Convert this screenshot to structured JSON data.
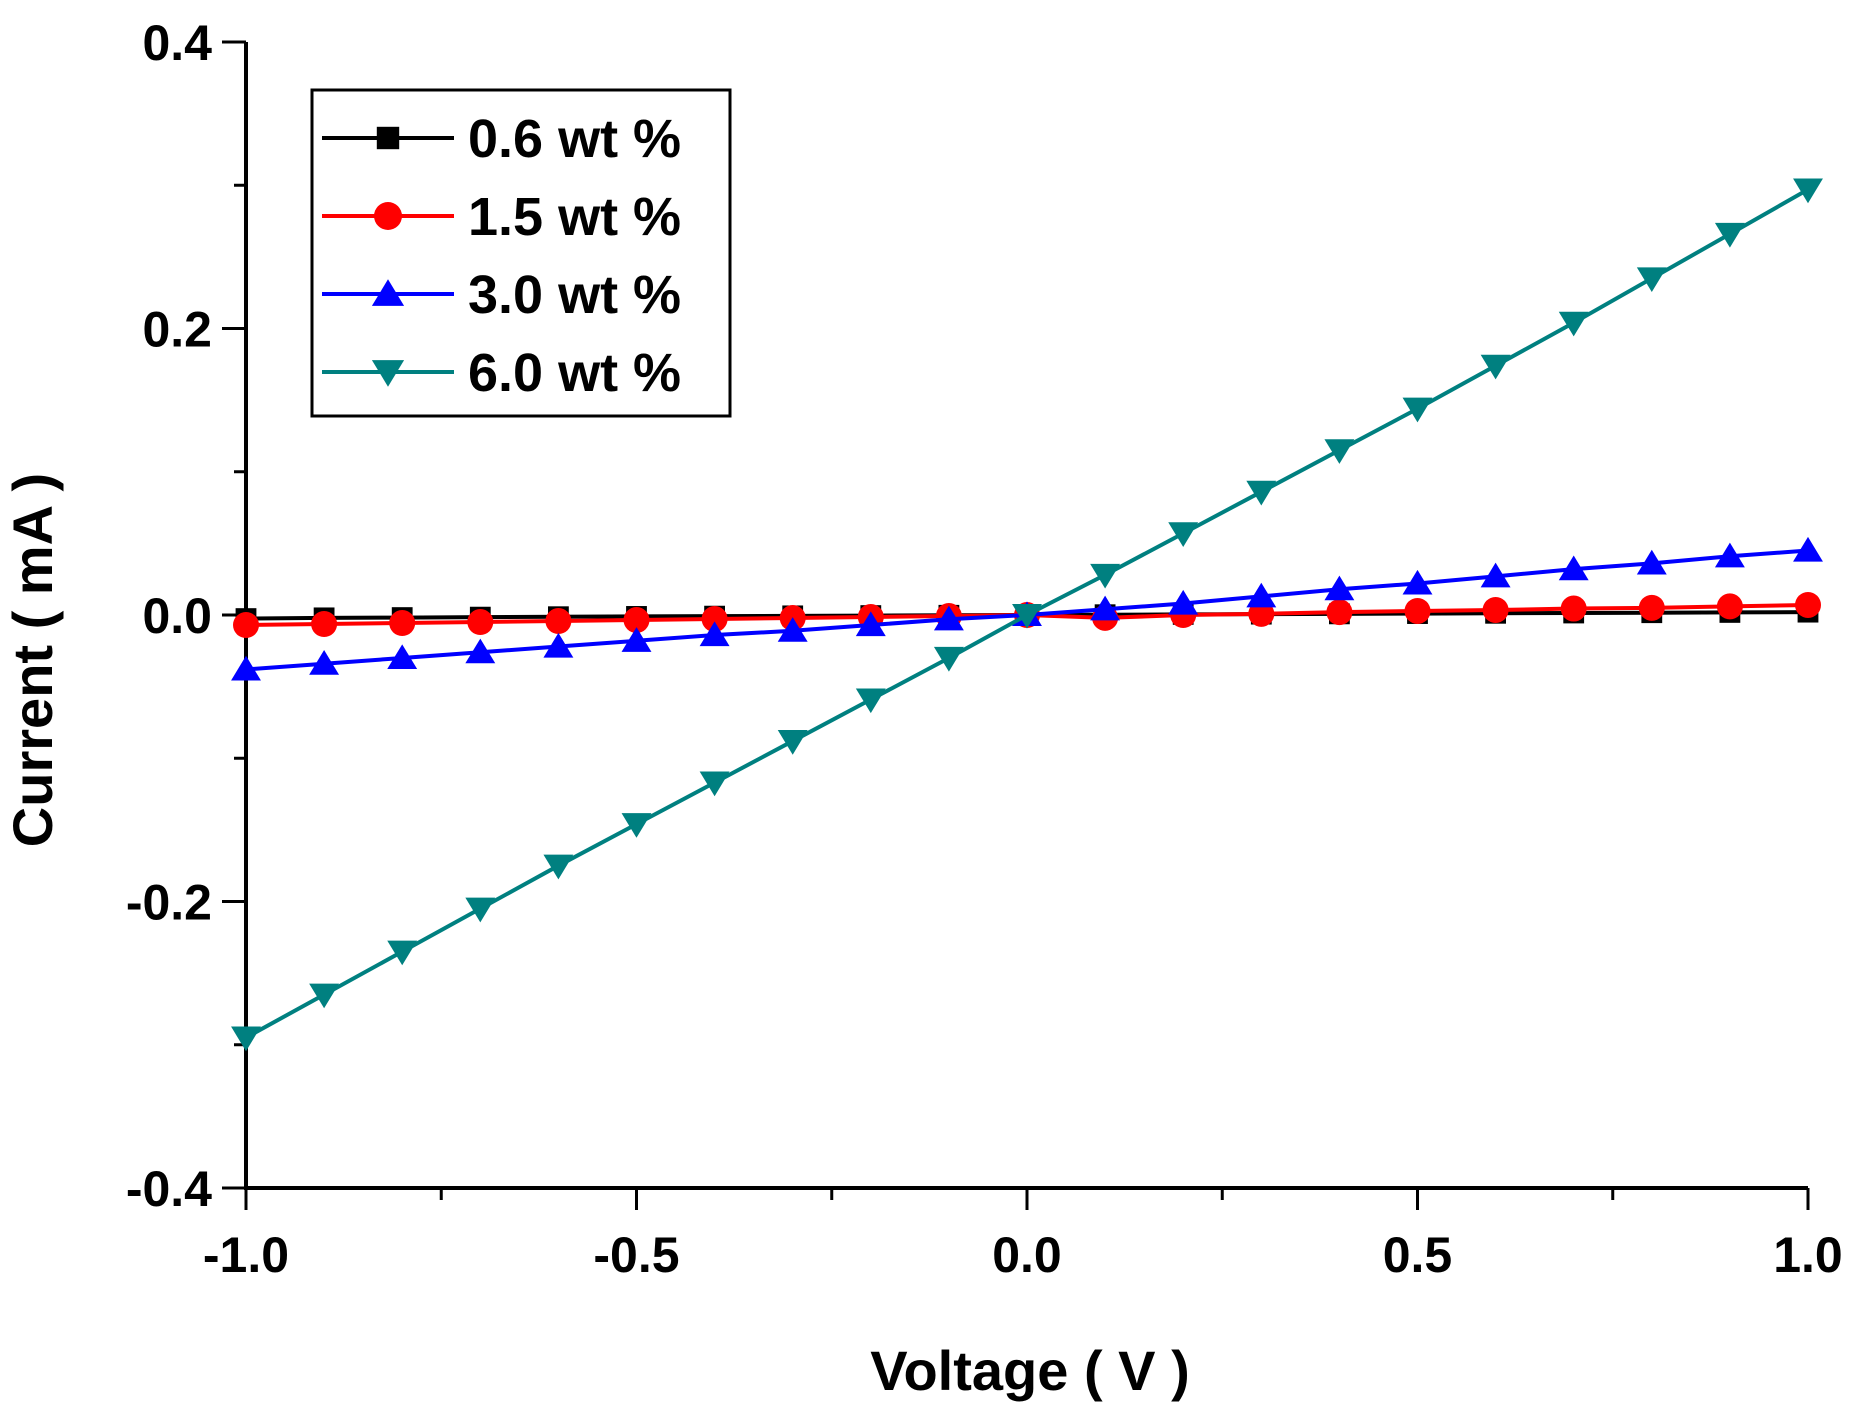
{
  "chart_data": {
    "type": "line",
    "title": "",
    "xlabel": "Voltage ( V )",
    "ylabel": "Current ( mA )",
    "xlim": [
      -1.0,
      1.0
    ],
    "ylim": [
      -0.4,
      0.4
    ],
    "x_ticks": [
      "-1.0",
      "-0.5",
      "0.0",
      "0.5",
      "1.0"
    ],
    "x_tick_values": [
      -1.0,
      -0.5,
      0.0,
      0.5,
      1.0
    ],
    "y_ticks": [
      "-0.4",
      "-0.2",
      "0.0",
      "0.2",
      "0.4"
    ],
    "y_tick_values": [
      -0.4,
      -0.2,
      0.0,
      0.2,
      0.4
    ],
    "grid": false,
    "legend_position": "top-left",
    "x": [
      -1.0,
      -0.9,
      -0.8,
      -0.7,
      -0.6,
      -0.5,
      -0.4,
      -0.3,
      -0.2,
      -0.1,
      0.0,
      0.1,
      0.2,
      0.3,
      0.4,
      0.5,
      0.6,
      0.7,
      0.8,
      0.9,
      1.0
    ],
    "series": [
      {
        "name": "0.6 wt %",
        "color": "#000000",
        "marker": "square",
        "values": [
          -0.0025,
          -0.002,
          -0.0018,
          -0.0015,
          -0.0012,
          -0.001,
          -0.0008,
          -0.0006,
          -0.0004,
          -0.0002,
          0.0,
          0.0002,
          0.0004,
          0.0006,
          0.0008,
          0.001,
          0.0012,
          0.0014,
          0.0016,
          0.0018,
          0.002
        ]
      },
      {
        "name": "1.5 wt %",
        "color": "#ff0000",
        "marker": "circle",
        "values": [
          -0.007,
          -0.0063,
          -0.0056,
          -0.0049,
          -0.0042,
          -0.0035,
          -0.0028,
          -0.0021,
          -0.0014,
          -0.0007,
          0.0,
          -0.002,
          0.0,
          0.0008,
          0.002,
          0.0028,
          0.0035,
          0.0045,
          0.005,
          0.006,
          0.007
        ]
      },
      {
        "name": "3.0 wt %",
        "color": "#0000ff",
        "marker": "triangle-up",
        "values": [
          -0.038,
          -0.034,
          -0.03,
          -0.026,
          -0.022,
          -0.018,
          -0.014,
          -0.011,
          -0.007,
          -0.003,
          0.0,
          0.004,
          0.008,
          0.013,
          0.018,
          0.022,
          0.027,
          0.032,
          0.036,
          0.041,
          0.045
        ]
      },
      {
        "name": "6.0 wt %",
        "color": "#008080",
        "marker": "triangle-down",
        "values": [
          -0.295,
          -0.265,
          -0.235,
          -0.205,
          -0.175,
          -0.146,
          -0.117,
          -0.088,
          -0.059,
          -0.03,
          0.0,
          0.028,
          0.057,
          0.086,
          0.115,
          0.144,
          0.174,
          0.204,
          0.235,
          0.266,
          0.297
        ]
      }
    ]
  }
}
